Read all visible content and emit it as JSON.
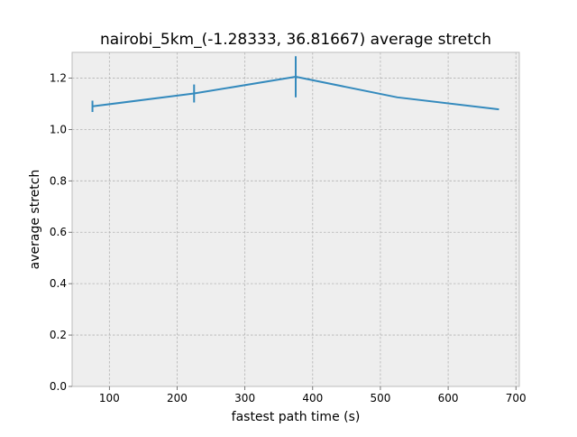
{
  "chart_data": {
    "type": "line",
    "title": "nairobi_5km_(-1.28333, 36.81667) average stretch",
    "xlabel": "fastest path time (s)",
    "ylabel": "average stretch",
    "xlim": [
      45,
      705
    ],
    "ylim": [
      0.0,
      1.3
    ],
    "xticks": [
      100,
      200,
      300,
      400,
      500,
      600,
      700
    ],
    "yticks": [
      0.0,
      0.2,
      0.4,
      0.6,
      0.8,
      1.0,
      1.2
    ],
    "xtick_labels": [
      "100",
      "200",
      "300",
      "400",
      "500",
      "600",
      "700"
    ],
    "ytick_labels": [
      "0.0",
      "0.2",
      "0.4",
      "0.6",
      "0.8",
      "1.0",
      "1.2"
    ],
    "grid": true,
    "series": [
      {
        "x": [
          75,
          225,
          375,
          525,
          675
        ],
        "y": [
          1.09,
          1.14,
          1.205,
          1.125,
          1.078
        ],
        "yerr": [
          0.022,
          0.035,
          0.08,
          0.0,
          0.0
        ],
        "color": "#348abd"
      }
    ]
  },
  "style": {
    "background": "#eeeeee",
    "grid_color": "#b2b2b2",
    "spine_color": "#bcbcbc"
  }
}
